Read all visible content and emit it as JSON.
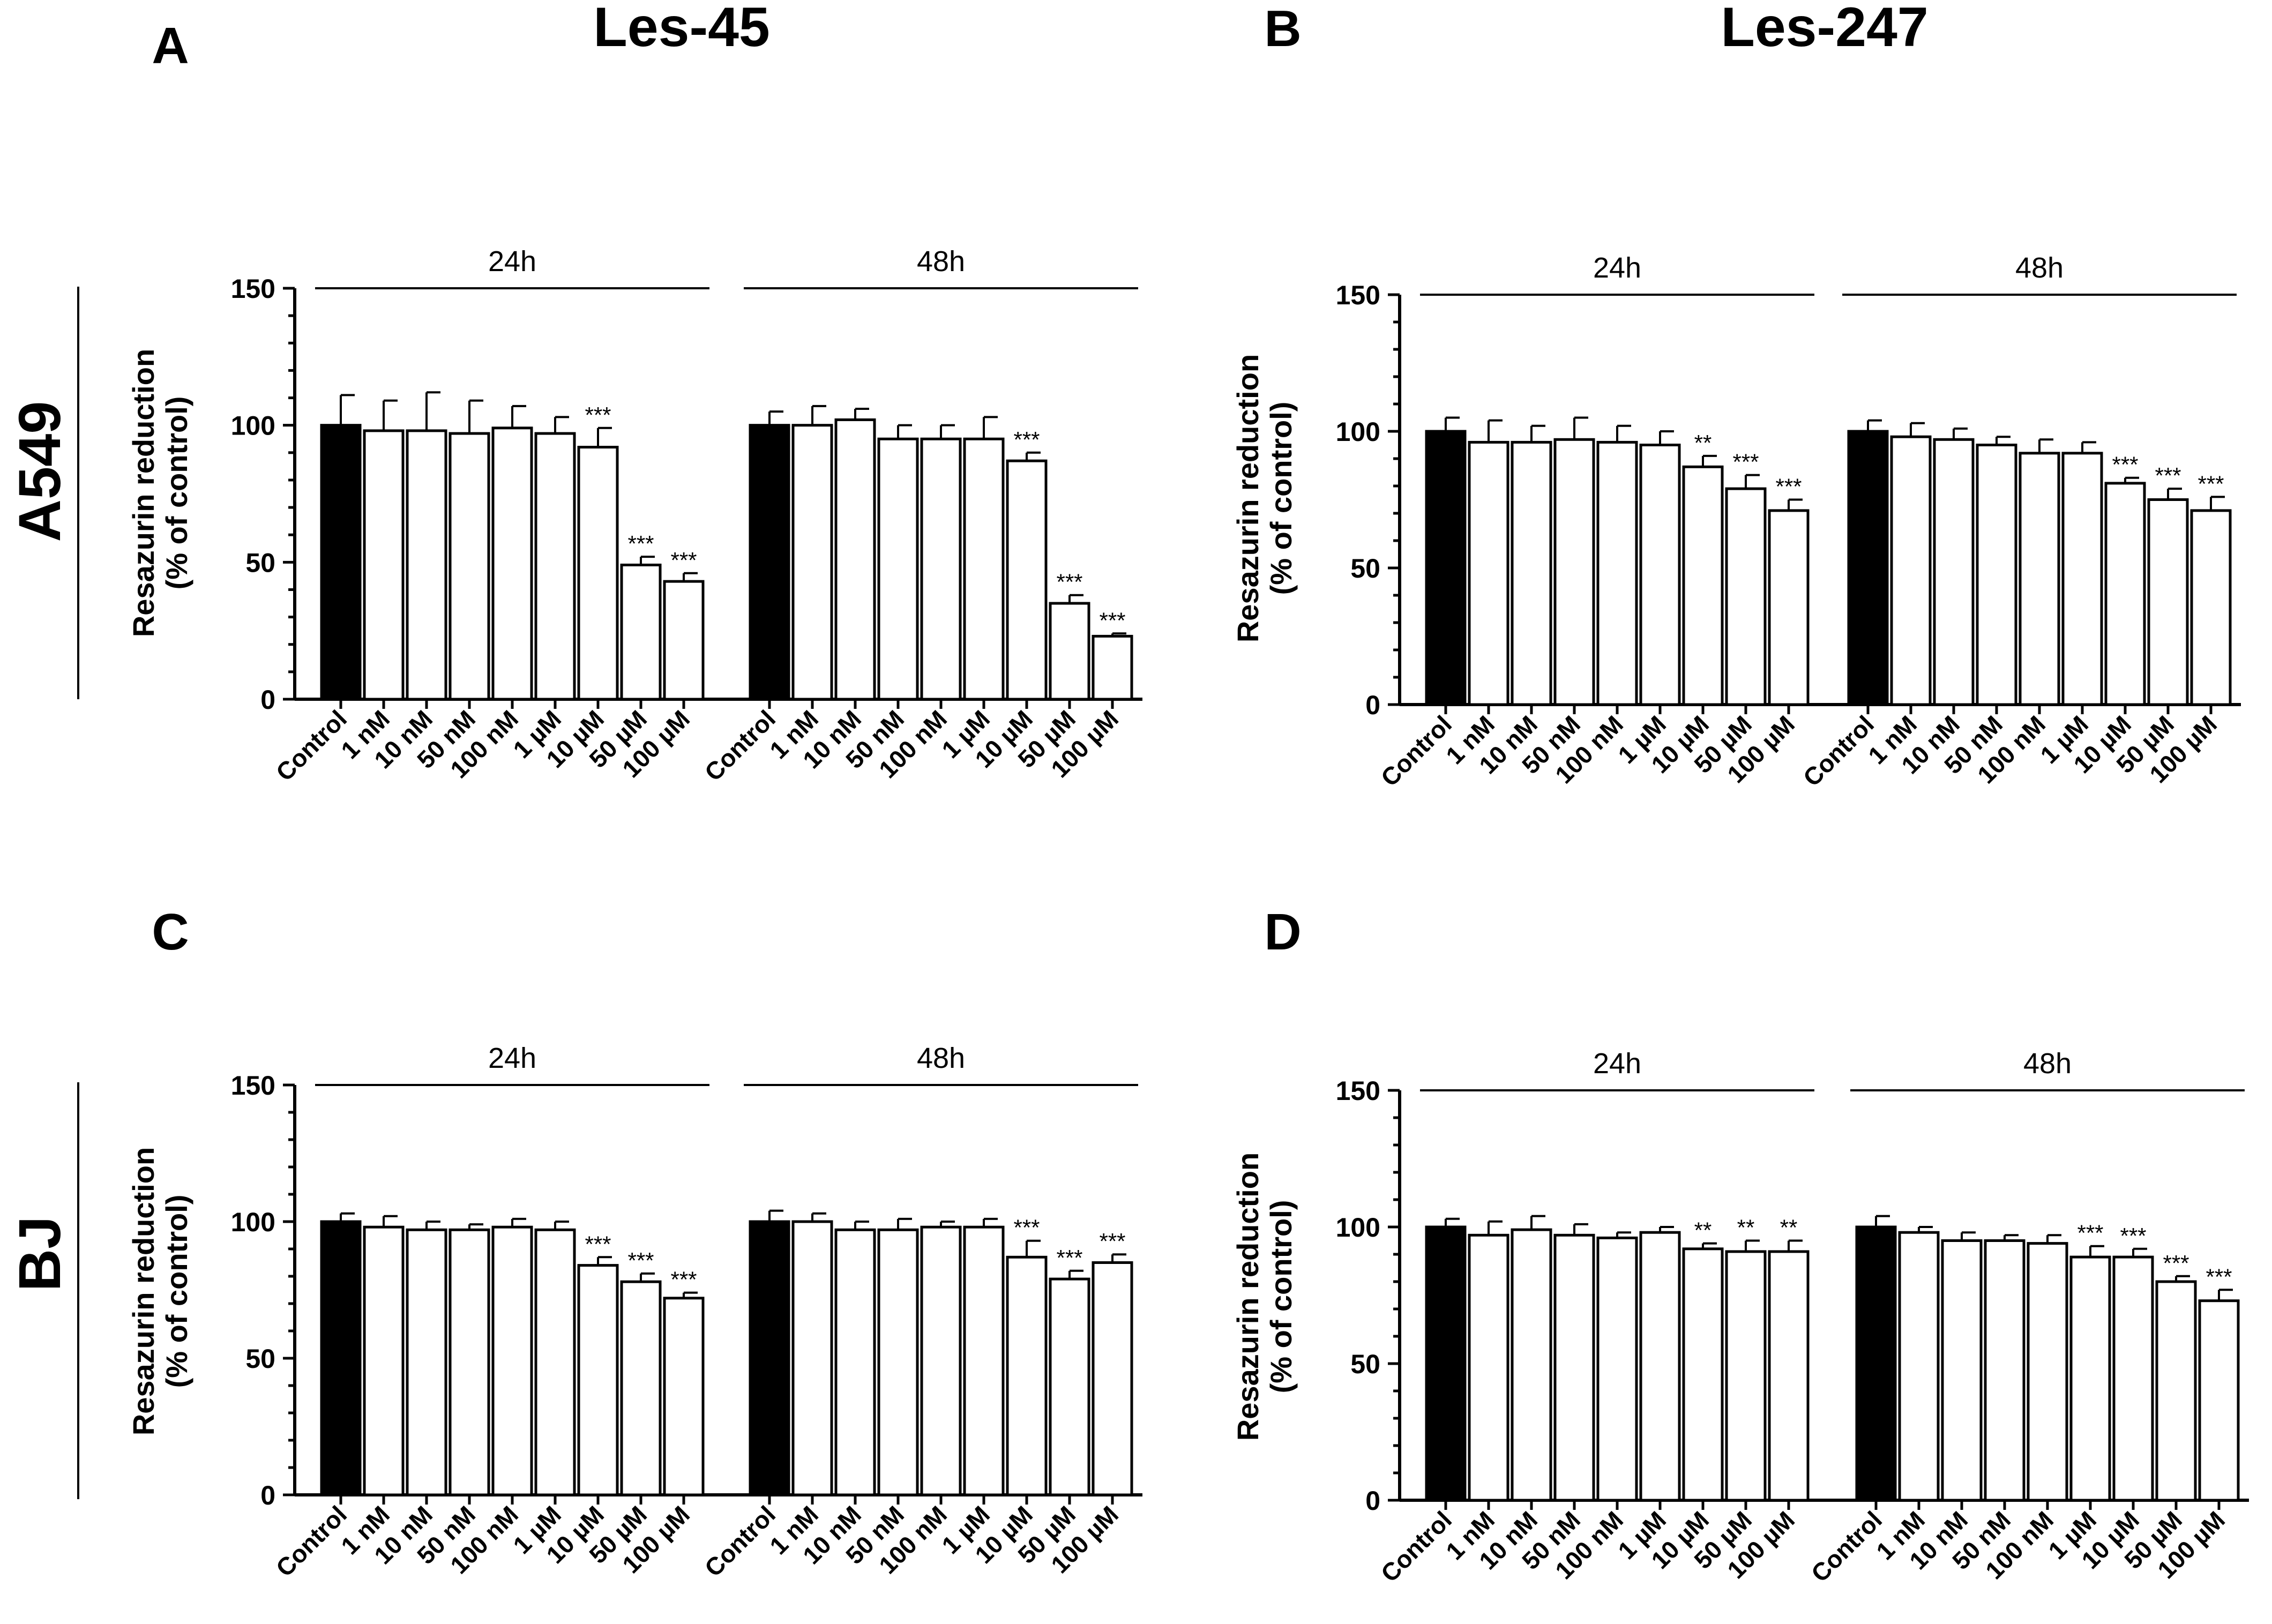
{
  "figure": {
    "column_titles": [
      "Les-45",
      "Les-247"
    ],
    "row_labels": [
      "A549",
      "BJ"
    ],
    "colors": {
      "control": "#000000",
      "treatment": "#ffffff",
      "stroke": "#000000"
    }
  },
  "chart_data": [
    {
      "panel": "A",
      "type": "bar",
      "ylabel": [
        "Resazurin reduction",
        "(% of control)"
      ],
      "ylim": [
        0,
        150
      ],
      "yticks": [
        0,
        50,
        100,
        150
      ],
      "groups": [
        {
          "label": "24h",
          "categories": [
            "Control",
            "1 nM",
            "10 nM",
            "50 nM",
            "100 nM",
            "1 µM",
            "10 µM",
            "50 µM",
            "100 µM"
          ],
          "values": [
            100,
            98,
            98,
            97,
            99,
            97,
            92,
            49,
            43
          ],
          "errors": [
            11,
            11,
            14,
            12,
            8,
            6,
            7,
            3,
            3
          ],
          "significance": [
            "",
            "",
            "",
            "",
            "",
            "",
            "***",
            "***",
            "***"
          ]
        },
        {
          "label": "48h",
          "categories": [
            "Control",
            "1 nM",
            "10 nM",
            "50 nM",
            "100 nM",
            "1 µM",
            "10 µM",
            "50 µM",
            "100 µM"
          ],
          "values": [
            100,
            100,
            102,
            95,
            95,
            95,
            87,
            35,
            23
          ],
          "errors": [
            5,
            7,
            4,
            5,
            5,
            8,
            3,
            3,
            1
          ],
          "significance": [
            "",
            "",
            "",
            "",
            "",
            "",
            "***",
            "***",
            "***"
          ]
        }
      ]
    },
    {
      "panel": "B",
      "type": "bar",
      "ylabel": [
        "Resazurin reduction",
        "(% of control)"
      ],
      "ylim": [
        0,
        150
      ],
      "yticks": [
        0,
        50,
        100,
        150
      ],
      "groups": [
        {
          "label": "24h",
          "categories": [
            "Control",
            "1 nM",
            "10 nM",
            "50 nM",
            "100 nM",
            "1 µM",
            "10 µM",
            "50 µM",
            "100 µM"
          ],
          "values": [
            100,
            96,
            96,
            97,
            96,
            95,
            87,
            79,
            71
          ],
          "errors": [
            5,
            8,
            6,
            8,
            6,
            5,
            4,
            5,
            4
          ],
          "significance": [
            "",
            "",
            "",
            "",
            "",
            "",
            "**",
            "***",
            "***"
          ]
        },
        {
          "label": "48h",
          "categories": [
            "Control",
            "1 nM",
            "10 nM",
            "50 nM",
            "100 nM",
            "1 µM",
            "10 µM",
            "50 µM",
            "100 µM"
          ],
          "values": [
            100,
            98,
            97,
            95,
            92,
            92,
            81,
            75,
            71
          ],
          "errors": [
            4,
            5,
            4,
            3,
            5,
            4,
            2,
            4,
            5
          ],
          "significance": [
            "",
            "",
            "",
            "",
            "",
            "",
            "***",
            "***",
            "***"
          ]
        }
      ]
    },
    {
      "panel": "C",
      "type": "bar",
      "ylabel": [
        "Resazurin reduction",
        "(% of control)"
      ],
      "ylim": [
        0,
        150
      ],
      "yticks": [
        0,
        50,
        100,
        150
      ],
      "groups": [
        {
          "label": "24h",
          "categories": [
            "Control",
            "1 nM",
            "10 nM",
            "50 nM",
            "100 nM",
            "1 µM",
            "10 µM",
            "50 µM",
            "100 µM"
          ],
          "values": [
            100,
            98,
            97,
            97,
            98,
            97,
            84,
            78,
            72
          ],
          "errors": [
            3,
            4,
            3,
            2,
            3,
            3,
            3,
            3,
            2
          ],
          "significance": [
            "",
            "",
            "",
            "",
            "",
            "",
            "***",
            "***",
            "***"
          ]
        },
        {
          "label": "48h",
          "categories": [
            "Control",
            "1 nM",
            "10 nM",
            "50 nM",
            "100 nM",
            "1 µM",
            "10 µM",
            "50 µM",
            "100 µM"
          ],
          "values": [
            100,
            100,
            97,
            97,
            98,
            98,
            87,
            79,
            85
          ],
          "errors": [
            4,
            3,
            3,
            4,
            2,
            3,
            6,
            3,
            3
          ],
          "significance": [
            "",
            "",
            "",
            "",
            "",
            "",
            "***",
            "***",
            "***"
          ]
        }
      ]
    },
    {
      "panel": "D",
      "type": "bar",
      "ylabel": [
        "Resazurin reduction",
        "(% of control)"
      ],
      "ylim": [
        0,
        150
      ],
      "yticks": [
        0,
        50,
        100,
        150
      ],
      "groups": [
        {
          "label": "24h",
          "categories": [
            "Control",
            "1 nM",
            "10 nM",
            "50 nM",
            "100 nM",
            "1 µM",
            "10 µM",
            "50 µM",
            "100 µM"
          ],
          "values": [
            100,
            97,
            99,
            97,
            96,
            98,
            92,
            91,
            91
          ],
          "errors": [
            3,
            5,
            5,
            4,
            2,
            2,
            2,
            4,
            4
          ],
          "significance": [
            "",
            "",
            "",
            "",
            "",
            "",
            "**",
            "**",
            "**"
          ]
        },
        {
          "label": "48h",
          "categories": [
            "Control",
            "1 nM",
            "10 nM",
            "50 nM",
            "100 nM",
            "1 µM",
            "10 µM",
            "50 µM",
            "100 µM"
          ],
          "values": [
            100,
            98,
            95,
            95,
            94,
            89,
            89,
            80,
            73
          ],
          "errors": [
            4,
            2,
            3,
            2,
            3,
            4,
            3,
            2,
            4
          ],
          "significance": [
            "",
            "",
            "",
            "",
            "",
            "***",
            "***",
            "***",
            "***"
          ]
        }
      ]
    }
  ]
}
